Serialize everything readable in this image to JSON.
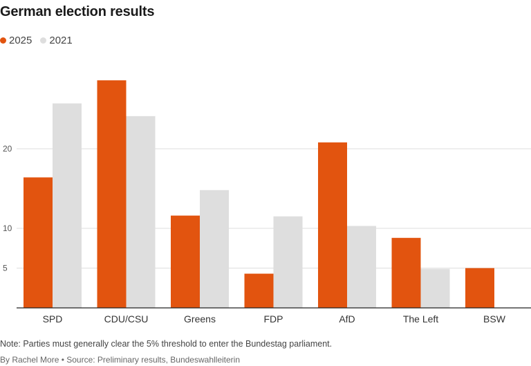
{
  "title": "German election results",
  "note": "Note: Parties must generally clear the 5% threshold to enter the Bundestag parliament.",
  "byline": "By Rachel More • Source: Preliminary results, Bundeswahlleiterin",
  "colors": {
    "2025": "#e2540f",
    "2021": "#dedede",
    "axis": "#222222",
    "grid": "#dddddd",
    "tick": "#555555"
  },
  "chart_data": {
    "type": "bar",
    "title": "German election results",
    "categories": [
      "SPD",
      "CDU/CSU",
      "Greens",
      "FDP",
      "AfD",
      "The Left",
      "BSW"
    ],
    "series": [
      {
        "name": "2025",
        "values": [
          16.4,
          28.6,
          11.6,
          4.3,
          20.8,
          8.8,
          5.0
        ]
      },
      {
        "name": "2021",
        "values": [
          25.7,
          24.1,
          14.8,
          11.5,
          10.3,
          4.9,
          null
        ]
      }
    ],
    "yticks": [
      5,
      10,
      20
    ],
    "ylim": [
      0,
      30
    ],
    "xlabel": "",
    "ylabel": "",
    "grid": true,
    "legend": "top-left"
  }
}
